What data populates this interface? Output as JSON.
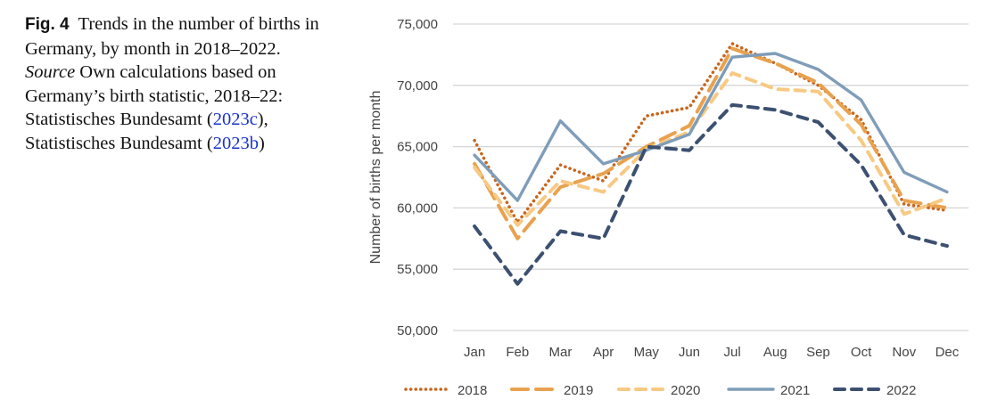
{
  "caption": {
    "label": "Fig. 4",
    "text_1": "Trends in the number of births in Germany, by month in 2018–2022.",
    "source_label": "Source",
    "text_2": "Own calculations based on Germany’s birth statistic, 2018–22: Statistisches Bundesamt (",
    "ref_1": "2023c",
    "text_3": "), Statistisches Bundesamt (",
    "ref_2": "2023b",
    "text_4": ")"
  },
  "chart_data": {
    "type": "line",
    "title": "",
    "xlabel": "",
    "ylabel": "Number of births per month",
    "ylim": [
      50000,
      75000
    ],
    "yticks": [
      50000,
      55000,
      60000,
      65000,
      70000,
      75000
    ],
    "ytick_labels": [
      "50,000",
      "55,000",
      "60,000",
      "65,000",
      "70,000",
      "75,000"
    ],
    "grid": true,
    "legend_position": "bottom",
    "categories": [
      "Jan",
      "Feb",
      "Mar",
      "Apr",
      "May",
      "Jun",
      "Jul",
      "Aug",
      "Sep",
      "Oct",
      "Nov",
      "Dec"
    ],
    "series": [
      {
        "name": "2018",
        "color": "#C8661E",
        "style": "dotted",
        "values": [
          65500,
          58800,
          63500,
          62200,
          67500,
          68200,
          73400,
          71800,
          70000,
          67200,
          60300,
          59800
        ]
      },
      {
        "name": "2019",
        "color": "#E8A24F",
        "style": "longdash",
        "values": [
          63600,
          57500,
          61700,
          62800,
          65000,
          66700,
          73000,
          71800,
          70200,
          66800,
          60600,
          60000
        ]
      },
      {
        "name": "2020",
        "color": "#F7C983",
        "style": "dash",
        "values": [
          63300,
          58600,
          62200,
          61300,
          64800,
          66200,
          71000,
          69700,
          69500,
          65500,
          59500,
          60800
        ]
      },
      {
        "name": "2021",
        "color": "#7F9DB9",
        "style": "solid",
        "values": [
          64300,
          60600,
          67100,
          63600,
          64700,
          66000,
          72300,
          72600,
          71300,
          68800,
          62900,
          61300
        ]
      },
      {
        "name": "2022",
        "color": "#3C5070",
        "style": "dash",
        "values": [
          58500,
          53800,
          58100,
          57500,
          65000,
          64700,
          68400,
          68000,
          67000,
          63500,
          57800,
          56900
        ]
      }
    ]
  }
}
